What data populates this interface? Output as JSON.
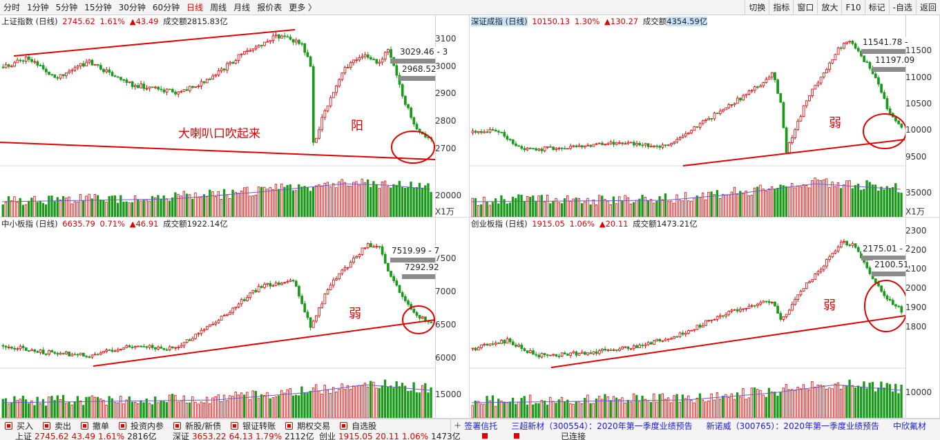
{
  "toolbar": {
    "periods": [
      "分时",
      "1分钟",
      "5分钟",
      "15分钟",
      "30分钟",
      "60分钟",
      "日线",
      "周线",
      "月线",
      "报价表",
      "更多 〉"
    ],
    "active_period": "日线",
    "tools": [
      "切换",
      "指标",
      "窗口",
      "放大",
      "F10",
      "标记",
      "-自选",
      "返回"
    ]
  },
  "colors": {
    "up": "#e00000",
    "down": "#1a9a1a",
    "trend_line": "#e00000",
    "price_level": "#8c8c8c",
    "ma_line": "#6a5acd"
  },
  "panels": {
    "sh": {
      "name": "上证指数 (日线)",
      "price": "2745.62",
      "pct": "1.61%",
      "chg": "▲43.49",
      "turnover_label": "成交额",
      "turnover": "2815.83亿",
      "y_ticks": [
        "3100",
        "3000",
        "2900",
        "2800",
        "2700"
      ],
      "vol_tick": "20000",
      "unit": "X1万",
      "levels": [
        "3029.46 - 3",
        "2968.52"
      ],
      "annotation": "阳",
      "annotation2": "大喇叭口吹起来"
    },
    "sz": {
      "name": "深证成指 (日线)",
      "price": "10150.13",
      "pct": "1.30%",
      "chg": "▲130.27",
      "turnover_label": "成交额",
      "turnover": "4354.59亿",
      "y_ticks": [
        "11500",
        "11000",
        "10500",
        "10000",
        "9500"
      ],
      "vol_tick": "35000",
      "unit": "X1万",
      "levels": [
        "11541.78 -",
        "11197.09"
      ],
      "annotation": "弱"
    },
    "zx": {
      "name": "中小板指 (日线)",
      "price": "6635.79",
      "pct": "0.71%",
      "chg": "▲46.91",
      "turnover_label": "成交额",
      "turnover": "1922.14亿",
      "y_ticks": [
        "7500",
        "7000",
        "6500",
        "6000"
      ],
      "vol_tick": "15000",
      "levels": [
        "7519.99 - 7",
        "7292.92"
      ],
      "annotation": "弱"
    },
    "cy": {
      "name": "创业板指 (日线)",
      "price": "1915.05",
      "pct": "1.06%",
      "chg": "▲20.11",
      "turnover_label": "成交额",
      "turnover": "1473.21亿",
      "y_ticks": [
        "2300",
        "2200",
        "2100",
        "2000",
        "1900",
        "1800"
      ],
      "vol_tick": "10000",
      "levels": [
        "2175.01 - 2",
        "2100.51"
      ],
      "annotation": "弱"
    }
  },
  "actions": [
    "买入",
    "卖出",
    "撤单",
    "投资内参",
    "新股/新债",
    "银证转账",
    "期权交易",
    "自选股"
  ],
  "ticker": [
    "签署信托",
    "三超新材（300554）：2020年第一季度业绩预告",
    "新诺威（300765）：2020年第一季度业绩预告",
    "中欣氟材"
  ],
  "status": {
    "sh": {
      "name": "上证",
      "price": "2745.62",
      "chg": "43.49",
      "pct": "1.61%",
      "amt": "2816亿"
    },
    "sz": {
      "name": "深证",
      "price": "3653.22",
      "chg": "64.13",
      "pct": "1.79%",
      "amt": "2112亿"
    },
    "cy": {
      "name": "创业",
      "price": "1915.05",
      "chg": "20.11",
      "pct": "1.06%",
      "amt": "1473亿"
    },
    "conn": "已连接"
  }
}
